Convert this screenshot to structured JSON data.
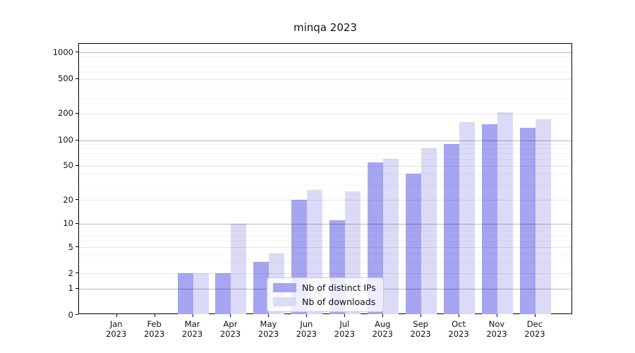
{
  "title": "minqa 2023",
  "chart_data": {
    "type": "bar",
    "title": "minqa 2023",
    "categories": [
      "Jan 2023",
      "Feb 2023",
      "Mar 2023",
      "Apr 2023",
      "May 2023",
      "Jun 2023",
      "Jul 2023",
      "Aug 2023",
      "Sep 2023",
      "Oct 2023",
      "Nov 2023",
      "Dec 2023"
    ],
    "series": [
      {
        "name": "Nb of distinct IPs",
        "color": "#a5a5f2",
        "values": [
          0,
          0,
          2,
          2,
          3,
          20,
          11,
          55,
          40,
          90,
          150,
          138
        ]
      },
      {
        "name": "Nb of downloads",
        "color": "#dbdbf8",
        "values": [
          0,
          0,
          2,
          10,
          4,
          26,
          25,
          60,
          80,
          160,
          205,
          172
        ]
      }
    ],
    "xlabel": "",
    "ylabel": "",
    "y_axis": {
      "scale": "symlog",
      "ticks": [
        0,
        1,
        2,
        5,
        10,
        20,
        50,
        100,
        200,
        500,
        1000
      ],
      "major_grid_values": [
        1,
        10,
        100,
        1000
      ],
      "minor_grid_base_values": [
        3,
        4,
        6,
        7,
        8,
        9
      ]
    },
    "grid": "horizontal",
    "legend_position": "lower-center"
  },
  "legend": {
    "items": [
      {
        "label": "Nb of distinct IPs",
        "color": "#a5a5f2"
      },
      {
        "label": "Nb of downloads",
        "color": "#dbdbf8"
      }
    ]
  }
}
